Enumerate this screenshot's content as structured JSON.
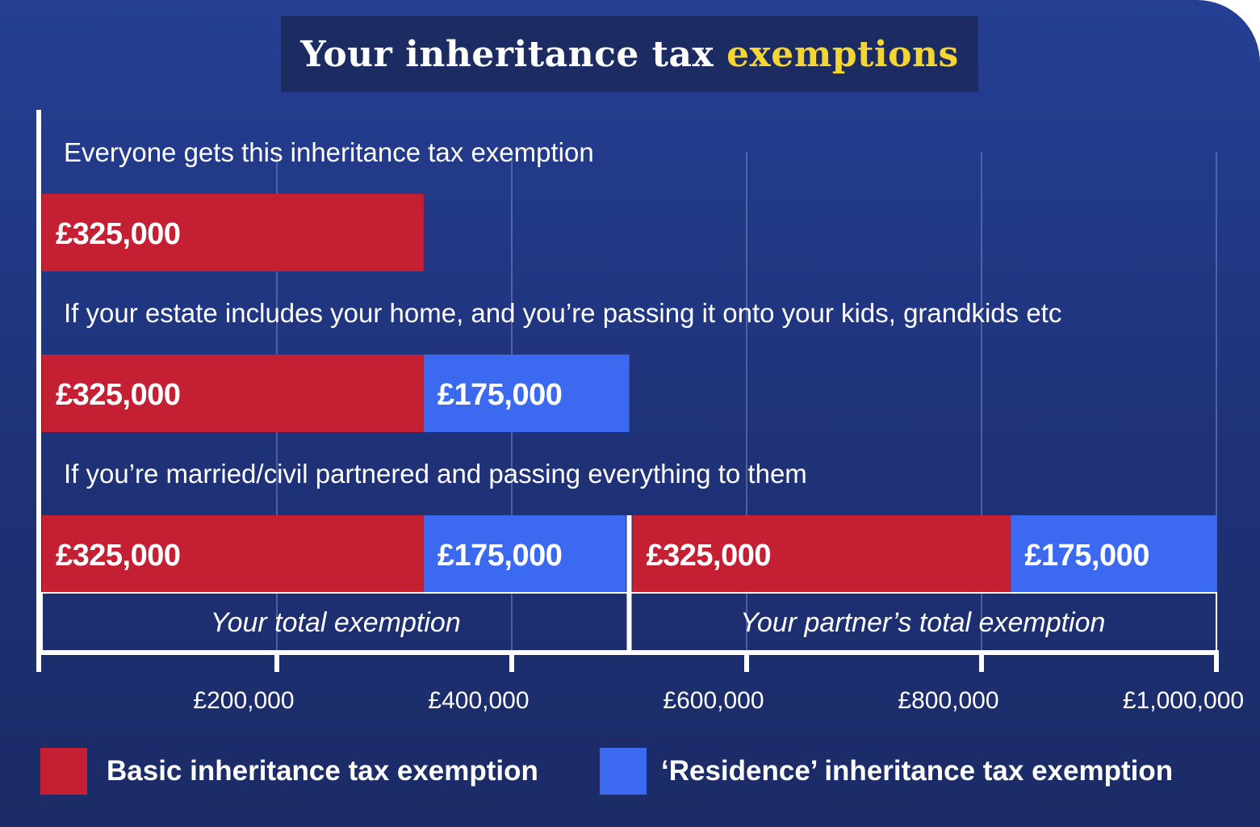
{
  "title": {
    "lead": "Your inheritance tax ",
    "accent": "exemptions"
  },
  "colors": {
    "basic": "#c41f33",
    "residence": "#3b6af0",
    "title_accent": "#f5d531",
    "grid": "#8a9ad0",
    "axis": "#ffffff"
  },
  "chart_data": {
    "type": "bar",
    "orientation": "horizontal-stacked",
    "xlim": [
      0,
      1000000
    ],
    "xticks": [
      200000,
      400000,
      600000,
      800000,
      1000000
    ],
    "xtick_labels": [
      "£200,000",
      "£400,000",
      "£600,000",
      "£800,000",
      "£1,000,000"
    ],
    "grid": true,
    "legend_position": "bottom",
    "legend": [
      {
        "name": "Basic inheritance tax exemption",
        "color": "#c41f33"
      },
      {
        "name": "‘Residence’ inheritance tax exemption",
        "color": "#3b6af0"
      }
    ],
    "scenarios": [
      {
        "label": "Everyone gets this inheritance tax exemption",
        "segments": [
          {
            "series": "basic",
            "start": 0,
            "value": 325000,
            "label": "£325,000"
          }
        ]
      },
      {
        "label": "If your estate includes your home, and you’re passing it onto your kids, grandkids etc",
        "segments": [
          {
            "series": "basic",
            "start": 0,
            "value": 325000,
            "label": "£325,000"
          },
          {
            "series": "residence",
            "start": 325000,
            "value": 175000,
            "label": "£175,000"
          }
        ]
      },
      {
        "label": "If you’re married/civil partnered and passing everything to them",
        "segments": [
          {
            "series": "basic",
            "start": 0,
            "value": 325000,
            "label": "£325,000"
          },
          {
            "series": "residence",
            "start": 325000,
            "value": 175000,
            "label": "£175,000"
          },
          {
            "series": "basic",
            "start": 500000,
            "value": 325000,
            "label": "£325,000"
          },
          {
            "series": "residence",
            "start": 825000,
            "value": 175000,
            "label": "£175,000"
          }
        ],
        "brackets": [
          {
            "start": 0,
            "end": 500000,
            "label": "Your total exemption"
          },
          {
            "start": 500000,
            "end": 1000000,
            "label": "Your partner’s total exemption"
          }
        ]
      }
    ]
  }
}
